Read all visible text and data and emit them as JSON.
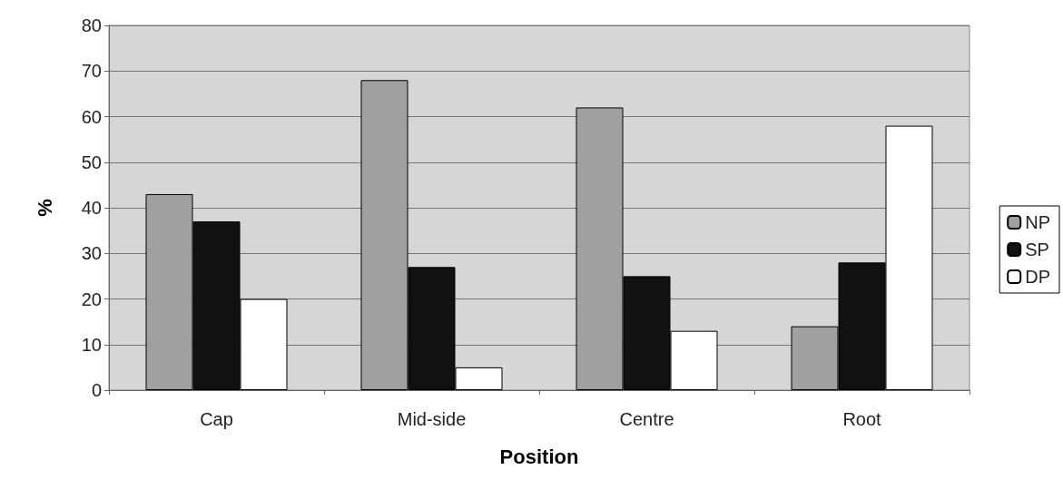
{
  "chart_data": {
    "type": "bar",
    "xlabel": "Position",
    "ylabel": "%",
    "categories": [
      "Cap",
      "Mid-side",
      "Centre",
      "Root"
    ],
    "series": [
      {
        "name": "NP",
        "color": "#a0a0a0",
        "values": [
          43,
          68,
          62,
          14
        ]
      },
      {
        "name": "SP",
        "color": "#111111",
        "values": [
          37,
          27,
          25,
          28
        ]
      },
      {
        "name": "DP",
        "color": "#ffffff",
        "values": [
          20,
          5,
          13,
          58
        ]
      }
    ],
    "ylim": [
      0,
      80
    ],
    "yticks": [
      0,
      10,
      20,
      30,
      40,
      50,
      60,
      70,
      80
    ],
    "grid": "y",
    "legend": "right"
  }
}
